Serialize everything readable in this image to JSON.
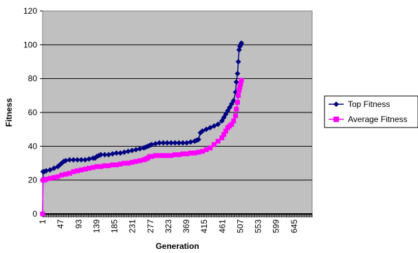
{
  "chart_data": {
    "type": "line",
    "title": "",
    "xlabel": "Generation",
    "ylabel": "Fitness",
    "ylim": [
      0,
      120
    ],
    "yticks": [
      0,
      20,
      40,
      60,
      80,
      100,
      120
    ],
    "xlim": [
      1,
      691
    ],
    "xticks": [
      1,
      47,
      93,
      139,
      185,
      231,
      277,
      323,
      369,
      415,
      461,
      507,
      553,
      599,
      645
    ],
    "grid": "horizontal",
    "legend": "right",
    "plot_background": "#C0C0C0",
    "series": [
      {
        "name": "Top Fitness",
        "color": "#000080",
        "marker": "diamond",
        "x": [
          1,
          2,
          5,
          10,
          20,
          30,
          40,
          45,
          50,
          55,
          60,
          70,
          80,
          90,
          100,
          110,
          120,
          130,
          135,
          140,
          145,
          150,
          160,
          170,
          180,
          190,
          200,
          210,
          220,
          230,
          240,
          250,
          260,
          265,
          270,
          275,
          280,
          290,
          300,
          310,
          320,
          330,
          340,
          350,
          360,
          370,
          380,
          390,
          395,
          400,
          405,
          410,
          420,
          430,
          440,
          450,
          460,
          465,
          470,
          475,
          480,
          485,
          490,
          495,
          497,
          500,
          502,
          504,
          506,
          508,
          510
        ],
        "values": [
          0,
          25,
          25,
          25.5,
          26,
          27,
          28,
          29,
          30,
          31,
          31.5,
          32,
          32,
          32,
          32,
          32,
          32.5,
          33,
          33,
          34,
          34.5,
          35,
          35,
          35,
          35.5,
          36,
          36,
          36.5,
          37,
          37.5,
          38,
          38.5,
          39,
          39.5,
          40,
          40.5,
          41,
          41.5,
          42,
          42,
          42,
          42,
          42,
          42,
          42,
          42,
          42.5,
          43,
          43.5,
          44,
          48,
          49,
          50,
          51,
          52,
          53,
          55,
          57,
          59,
          61,
          63,
          65,
          67,
          72,
          78,
          83,
          90,
          97,
          99,
          100,
          101
        ]
      },
      {
        "name": "Average Fitness",
        "color": "#FF00FF",
        "marker": "square",
        "x": [
          1,
          2,
          5,
          10,
          20,
          30,
          40,
          50,
          60,
          70,
          80,
          90,
          100,
          110,
          120,
          130,
          140,
          150,
          160,
          170,
          180,
          190,
          200,
          210,
          220,
          230,
          240,
          250,
          260,
          265,
          270,
          275,
          280,
          290,
          300,
          310,
          320,
          330,
          340,
          350,
          360,
          370,
          380,
          390,
          400,
          410,
          420,
          430,
          440,
          450,
          460,
          465,
          470,
          475,
          480,
          485,
          490,
          495,
          497,
          500,
          502,
          504,
          506,
          508,
          510
        ],
        "values": [
          0,
          20,
          20,
          20.5,
          21,
          21.5,
          22,
          23,
          23.5,
          24,
          25,
          25.5,
          26,
          26.5,
          27,
          27.5,
          28,
          28,
          28.5,
          28.5,
          29,
          29,
          29.5,
          30,
          30,
          30.5,
          31,
          31.5,
          32,
          32.5,
          33,
          34,
          34,
          34.5,
          34.5,
          34.5,
          34.5,
          34.5,
          35,
          35,
          35.5,
          35.5,
          36,
          36,
          36.5,
          37,
          38,
          39,
          41,
          43,
          45,
          47,
          49,
          51,
          52,
          53,
          55,
          58,
          62,
          66,
          70,
          73,
          75,
          77,
          79
        ]
      }
    ]
  }
}
